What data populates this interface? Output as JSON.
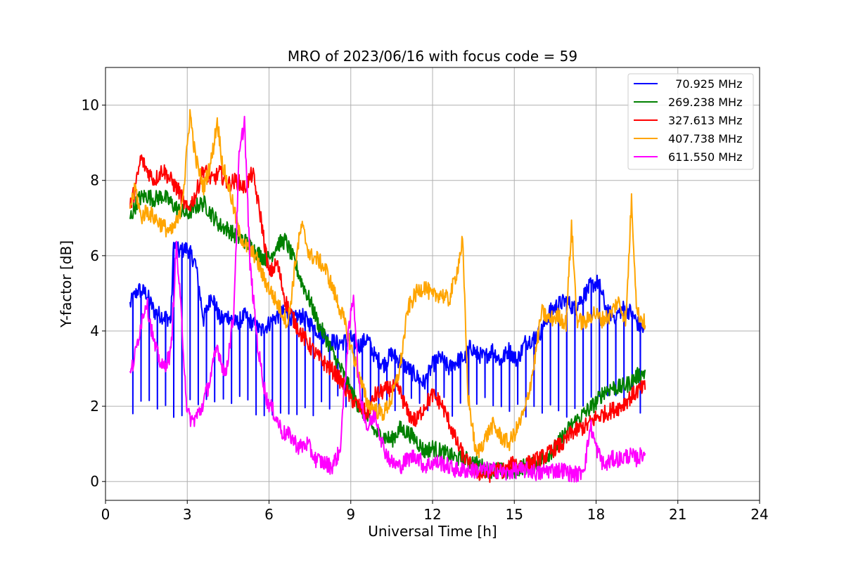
{
  "chart_data": {
    "type": "line",
    "title": "MRO of 2023/06/16 with focus code = 59",
    "xlabel": "Universal Time [h]",
    "ylabel": "Y-factor [dB]",
    "xlim": [
      0,
      24
    ],
    "ylim": [
      -0.5,
      11
    ],
    "xticks": [
      0,
      3,
      6,
      9,
      12,
      15,
      18,
      21,
      24
    ],
    "yticks": [
      0,
      2,
      4,
      6,
      8,
      10
    ],
    "grid": true,
    "legend_position": "top-right",
    "series": [
      {
        "name": "  70.925 MHz",
        "color": "#0000ff",
        "x": [
          0.9,
          1.2,
          1.5,
          1.8,
          2.1,
          2.4,
          2.5,
          2.7,
          3.0,
          3.3,
          3.6,
          3.9,
          4.2,
          4.5,
          4.8,
          5.1,
          5.4,
          5.7,
          6.0,
          6.3,
          6.6,
          6.9,
          7.2,
          7.5,
          7.8,
          8.1,
          8.4,
          8.7,
          9.0,
          9.3,
          9.6,
          9.9,
          10.2,
          10.5,
          10.8,
          11.1,
          11.4,
          11.7,
          12.0,
          12.3,
          12.6,
          12.9,
          13.2,
          13.4,
          13.6,
          13.9,
          14.2,
          14.5,
          14.8,
          15.1,
          15.4,
          15.7,
          16.0,
          16.3,
          16.6,
          16.9,
          17.2,
          17.5,
          17.8,
          18.1,
          18.4,
          18.7,
          19.0,
          19.3,
          19.6,
          19.8
        ],
        "y": [
          4.7,
          5.1,
          5.0,
          4.5,
          4.4,
          4.3,
          6.3,
          6.1,
          6.2,
          5.8,
          4.3,
          5.0,
          4.3,
          4.4,
          4.2,
          4.4,
          4.2,
          4.0,
          4.2,
          4.4,
          4.5,
          4.3,
          4.4,
          4.2,
          4.0,
          3.8,
          3.7,
          3.7,
          3.8,
          3.6,
          3.8,
          3.3,
          3.1,
          3.4,
          3.2,
          3.0,
          2.8,
          2.6,
          3.1,
          3.3,
          3.0,
          3.2,
          3.3,
          3.6,
          3.4,
          3.3,
          3.5,
          3.2,
          3.5,
          3.2,
          3.7,
          3.8,
          4.0,
          4.5,
          4.7,
          4.8,
          4.6,
          4.9,
          5.2,
          5.3,
          4.5,
          4.4,
          4.6,
          4.5,
          4.1,
          4.0
        ],
        "dips": {
          "period": 0.3,
          "start": 1.0,
          "end": 19.8,
          "low": 1.7
        }
      },
      {
        "name": "269.238 MHz",
        "color": "#008000",
        "x": [
          0.9,
          1.2,
          1.5,
          1.8,
          2.1,
          2.4,
          2.7,
          3.0,
          3.3,
          3.6,
          3.9,
          4.2,
          4.5,
          4.8,
          5.1,
          5.4,
          5.7,
          6.0,
          6.3,
          6.6,
          6.9,
          7.2,
          7.5,
          7.8,
          8.1,
          8.4,
          8.7,
          9.0,
          9.3,
          9.6,
          9.9,
          10.2,
          10.5,
          10.8,
          11.1,
          11.4,
          11.7,
          12.0,
          12.3,
          12.6,
          12.9,
          13.2,
          13.5,
          13.8,
          14.1,
          14.4,
          14.7,
          15.0,
          15.3,
          15.6,
          15.9,
          16.2,
          16.5,
          16.8,
          17.1,
          17.4,
          17.7,
          18.0,
          18.3,
          18.6,
          18.9,
          19.2,
          19.5,
          19.8
        ],
        "y": [
          7.0,
          7.5,
          7.6,
          7.5,
          7.6,
          7.4,
          7.2,
          7.1,
          7.3,
          7.4,
          7.1,
          6.8,
          6.7,
          6.5,
          6.4,
          6.2,
          6.0,
          5.9,
          6.3,
          6.4,
          5.9,
          5.3,
          4.8,
          4.2,
          3.8,
          3.3,
          2.9,
          2.4,
          2.0,
          1.7,
          1.3,
          1.2,
          1.1,
          1.4,
          1.3,
          1.1,
          0.8,
          0.9,
          0.8,
          0.7,
          0.6,
          0.6,
          0.5,
          0.4,
          0.3,
          0.3,
          0.25,
          0.3,
          0.4,
          0.4,
          0.5,
          0.7,
          0.9,
          1.2,
          1.5,
          1.7,
          1.9,
          2.1,
          2.4,
          2.5,
          2.5,
          2.6,
          2.8,
          2.9
        ]
      },
      {
        "name": "327.613 MHz",
        "color": "#ff0000",
        "x": [
          0.9,
          1.1,
          1.3,
          1.5,
          1.8,
          2.1,
          2.4,
          2.7,
          3.0,
          3.3,
          3.6,
          3.9,
          4.2,
          4.5,
          4.8,
          5.1,
          5.4,
          5.7,
          6.0,
          6.3,
          6.6,
          6.9,
          7.2,
          7.5,
          7.8,
          8.1,
          8.4,
          8.7,
          9.0,
          9.3,
          9.6,
          9.9,
          10.2,
          10.5,
          10.8,
          11.1,
          11.4,
          11.7,
          12.0,
          12.3,
          12.6,
          12.9,
          13.2,
          13.5,
          13.8,
          14.1,
          14.4,
          14.7,
          15.0,
          15.3,
          15.6,
          15.9,
          16.2,
          16.5,
          16.8,
          17.1,
          17.4,
          17.7,
          18.0,
          18.3,
          18.6,
          18.9,
          19.2,
          19.5,
          19.8
        ],
        "y": [
          7.3,
          7.8,
          8.6,
          8.3,
          8.0,
          8.3,
          8.0,
          7.7,
          7.2,
          7.6,
          8.3,
          8.0,
          8.2,
          7.9,
          8.0,
          7.8,
          8.2,
          7.0,
          5.5,
          5.8,
          4.8,
          4.3,
          3.9,
          3.6,
          3.3,
          3.1,
          2.9,
          2.6,
          2.2,
          2.0,
          1.8,
          2.3,
          2.4,
          2.5,
          2.4,
          1.8,
          1.6,
          2.0,
          2.3,
          2.1,
          1.6,
          1.0,
          0.6,
          0.3,
          0.2,
          0.2,
          0.3,
          0.3,
          0.5,
          0.4,
          0.5,
          0.6,
          0.7,
          0.9,
          1.0,
          1.3,
          1.4,
          1.5,
          1.7,
          1.8,
          1.9,
          2.0,
          2.2,
          2.4,
          2.5
        ]
      },
      {
        "name": "407.738 MHz",
        "color": "#ffa500",
        "x": [
          0.9,
          1.1,
          1.3,
          1.5,
          1.8,
          2.1,
          2.4,
          2.7,
          2.9,
          3.1,
          3.3,
          3.6,
          3.9,
          4.1,
          4.3,
          4.6,
          4.9,
          5.2,
          5.5,
          5.8,
          6.1,
          6.4,
          6.7,
          7.0,
          7.2,
          7.5,
          7.8,
          8.1,
          8.4,
          8.7,
          9.0,
          9.3,
          9.6,
          9.9,
          10.2,
          10.5,
          10.8,
          11.1,
          11.4,
          11.7,
          12.0,
          12.3,
          12.6,
          12.9,
          13.1,
          13.3,
          13.6,
          13.9,
          14.2,
          14.5,
          14.8,
          15.1,
          15.4,
          15.7,
          16.0,
          16.3,
          16.6,
          16.9,
          17.1,
          17.3,
          17.6,
          17.9,
          18.2,
          18.5,
          18.8,
          19.1,
          19.3,
          19.5,
          19.8
        ],
        "y": [
          7.3,
          7.8,
          7.0,
          7.2,
          7.0,
          6.8,
          6.6,
          7.0,
          8.0,
          9.8,
          8.6,
          7.8,
          8.6,
          9.6,
          8.4,
          7.6,
          6.6,
          6.2,
          6.0,
          5.4,
          5.0,
          4.6,
          4.2,
          6.0,
          6.8,
          6.0,
          5.9,
          5.6,
          5.0,
          4.4,
          3.6,
          2.8,
          2.1,
          1.9,
          1.8,
          2.2,
          3.0,
          4.6,
          5.0,
          5.2,
          4.9,
          5.0,
          4.8,
          5.6,
          6.4,
          2.3,
          0.7,
          1.1,
          1.5,
          1.2,
          1.0,
          1.4,
          1.9,
          3.0,
          4.5,
          4.3,
          4.4,
          4.2,
          6.8,
          4.3,
          4.2,
          4.5,
          4.3,
          4.4,
          4.8,
          4.3,
          7.5,
          4.5,
          4.2
        ]
      },
      {
        "name": "611.550 MHz",
        "color": "#ff00ff",
        "x": [
          0.9,
          1.1,
          1.3,
          1.5,
          1.8,
          2.1,
          2.4,
          2.6,
          2.8,
          3.0,
          3.2,
          3.5,
          3.8,
          4.1,
          4.4,
          4.7,
          4.9,
          5.1,
          5.3,
          5.6,
          5.9,
          6.2,
          6.5,
          6.8,
          7.1,
          7.4,
          7.7,
          8.0,
          8.3,
          8.6,
          8.9,
          9.1,
          9.3,
          9.6,
          9.9,
          10.2,
          10.5,
          10.8,
          11.1,
          11.4,
          11.7,
          12.0,
          12.3,
          12.6,
          12.9,
          13.2,
          13.5,
          13.8,
          14.1,
          14.4,
          14.7,
          15.0,
          15.3,
          15.6,
          15.9,
          16.2,
          16.5,
          16.8,
          17.1,
          17.4,
          17.6,
          17.8,
          18.0,
          18.3,
          18.6,
          18.9,
          19.2,
          19.5,
          19.8
        ],
        "y": [
          2.8,
          3.4,
          4.2,
          4.8,
          3.6,
          3.0,
          3.4,
          6.3,
          4.2,
          1.8,
          1.6,
          1.9,
          2.6,
          3.6,
          2.8,
          4.4,
          8.6,
          9.6,
          5.8,
          3.5,
          2.2,
          1.8,
          1.3,
          1.2,
          0.9,
          1.0,
          0.6,
          0.5,
          0.4,
          0.8,
          3.8,
          5.0,
          2.5,
          1.4,
          1.8,
          0.9,
          0.5,
          0.4,
          0.6,
          0.7,
          0.4,
          0.5,
          0.5,
          0.4,
          0.3,
          0.3,
          0.3,
          0.3,
          0.3,
          0.3,
          0.2,
          0.3,
          0.3,
          0.3,
          0.2,
          0.3,
          0.3,
          0.3,
          0.2,
          0.2,
          0.5,
          1.5,
          0.9,
          0.4,
          0.6,
          0.6,
          0.7,
          0.6,
          0.8
        ]
      }
    ]
  }
}
